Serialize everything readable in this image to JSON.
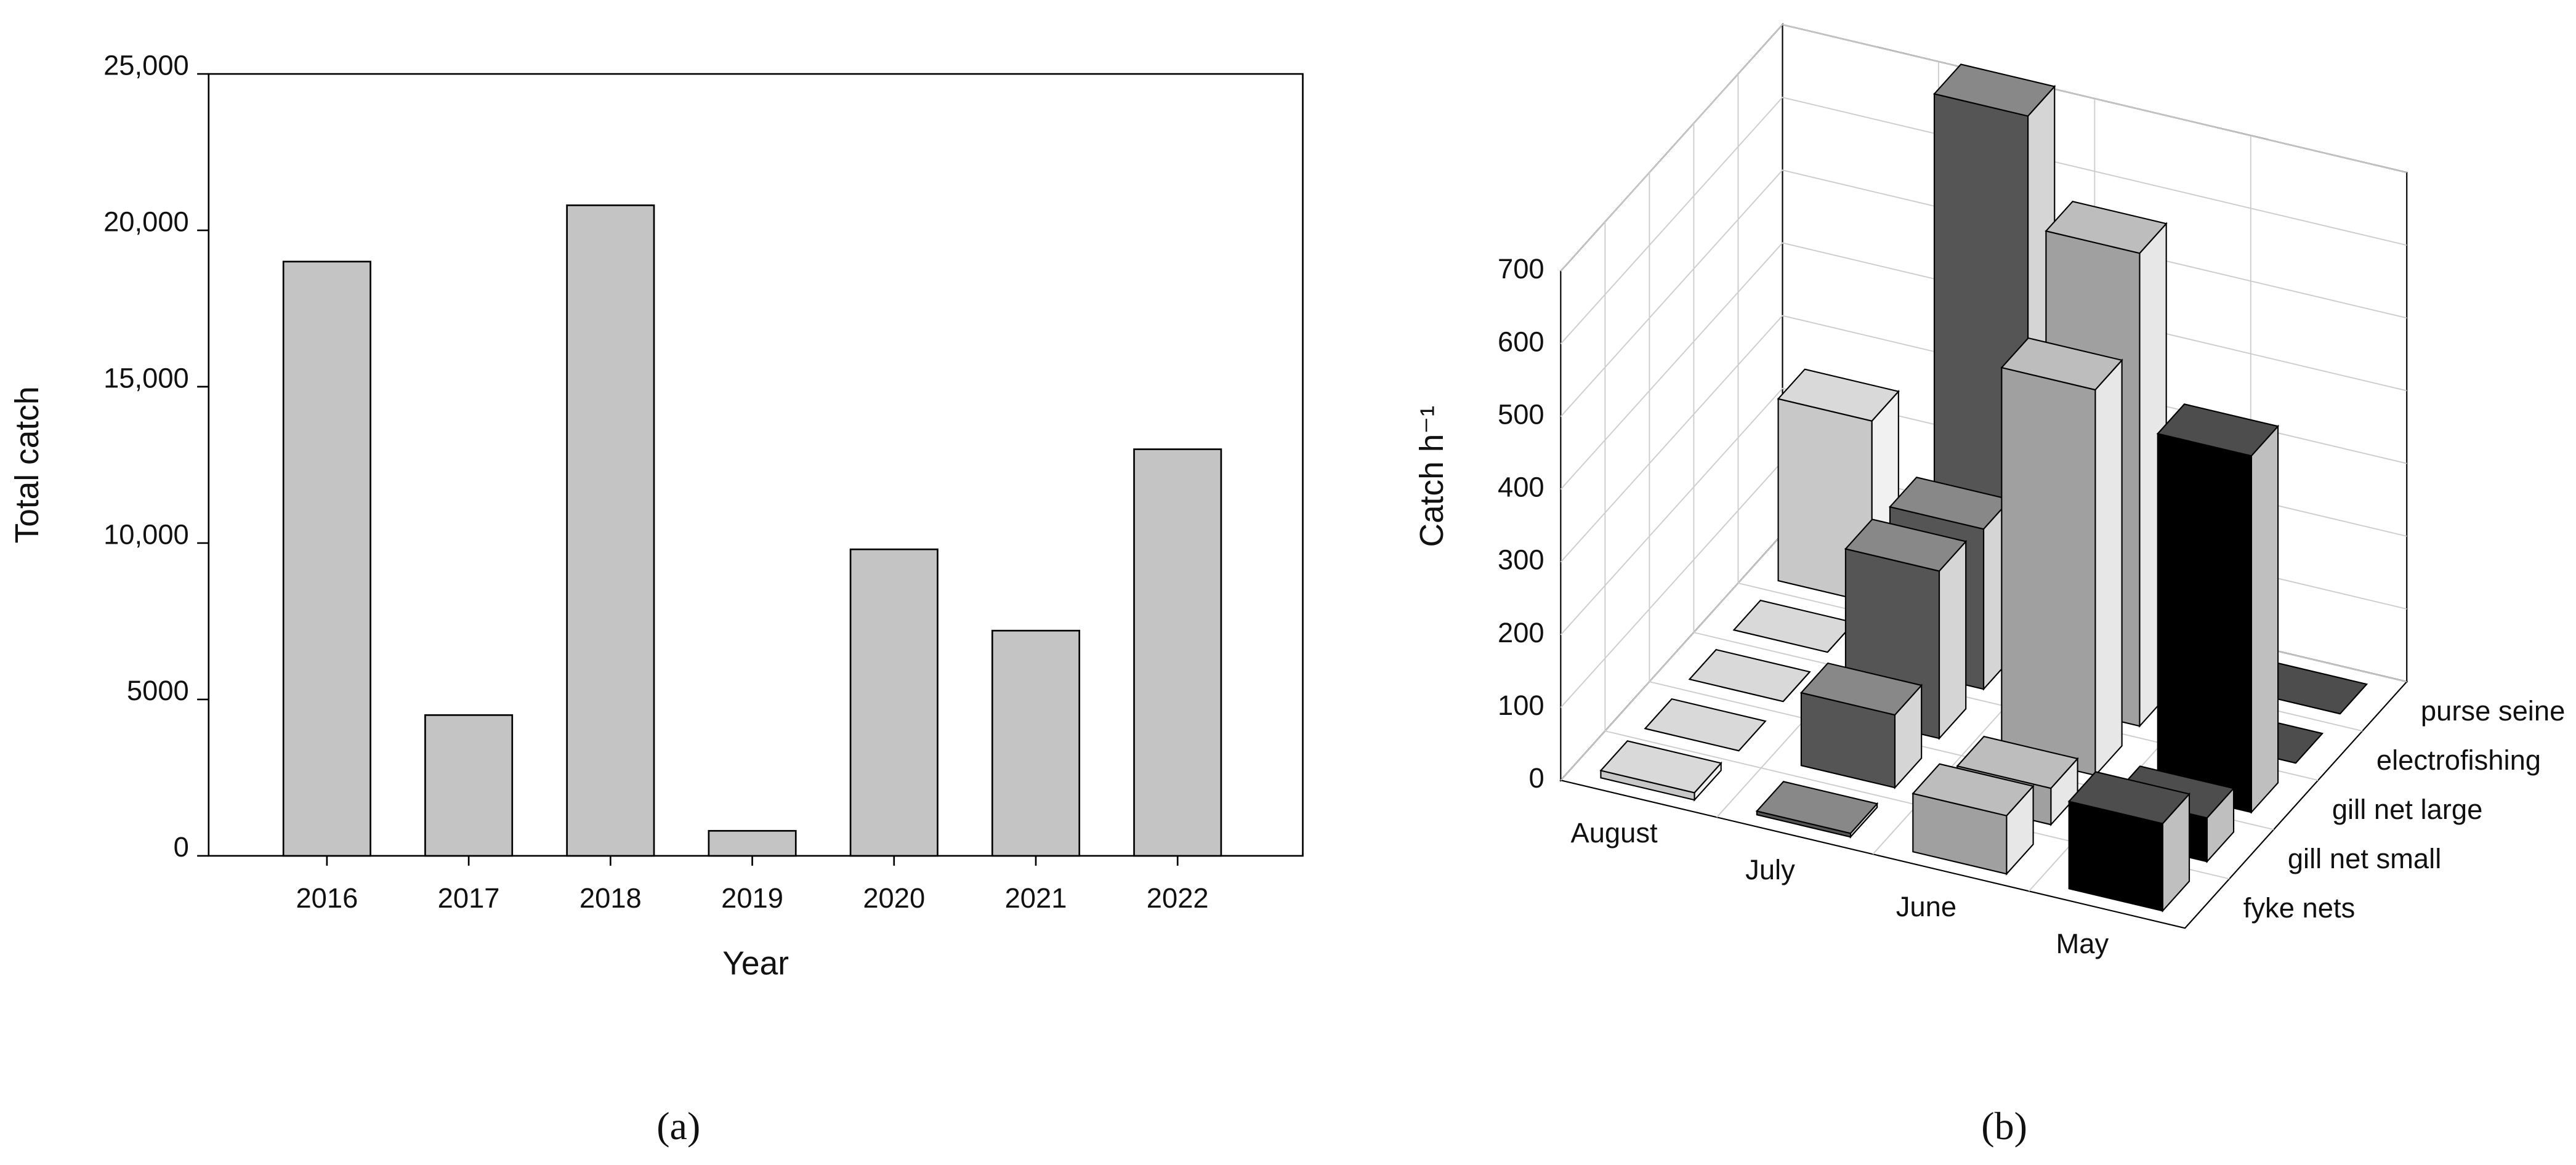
{
  "chart_data": [
    {
      "type": "bar",
      "panel": "(a)",
      "xlabel": "Year",
      "ylabel": "Total catch",
      "categories": [
        "2016",
        "2017",
        "2018",
        "2019",
        "2020",
        "2021",
        "2022"
      ],
      "values": [
        19000,
        4500,
        20800,
        800,
        9800,
        7200,
        13000
      ],
      "color": "#c4c4c4",
      "ylim": [
        0,
        25000
      ],
      "yticks": [
        0,
        5000,
        {
          "value": 10000,
          "label": "10,000"
        },
        {
          "value": 15000,
          "label": "15,000"
        },
        {
          "value": 20000,
          "label": "20,000"
        },
        {
          "value": 25000,
          "label": "25,000"
        }
      ]
    },
    {
      "type": "bar3d",
      "panel": "(b)",
      "ylabel": "Catch h⁻¹",
      "categories": [
        "fyke nets",
        "gill net small",
        "gill net large",
        "electrofishing",
        "purse seine"
      ],
      "series": [
        {
          "name": "August",
          "color": "#c8c8c8",
          "values": [
            10,
            0,
            0,
            0,
            250
          ]
        },
        {
          "name": "July",
          "color": "#555555",
          "values": [
            5,
            100,
            230,
            220,
            720
          ]
        },
        {
          "name": "June",
          "color": "#a0a0a0",
          "values": [
            80,
            50,
            530,
            650,
            0
          ]
        },
        {
          "name": "May",
          "color": "#000000",
          "values": [
            120,
            60,
            490,
            0,
            0
          ]
        }
      ],
      "ylim": [
        0,
        700
      ],
      "yticks": [
        0,
        100,
        200,
        300,
        400,
        500,
        600,
        700
      ]
    }
  ]
}
